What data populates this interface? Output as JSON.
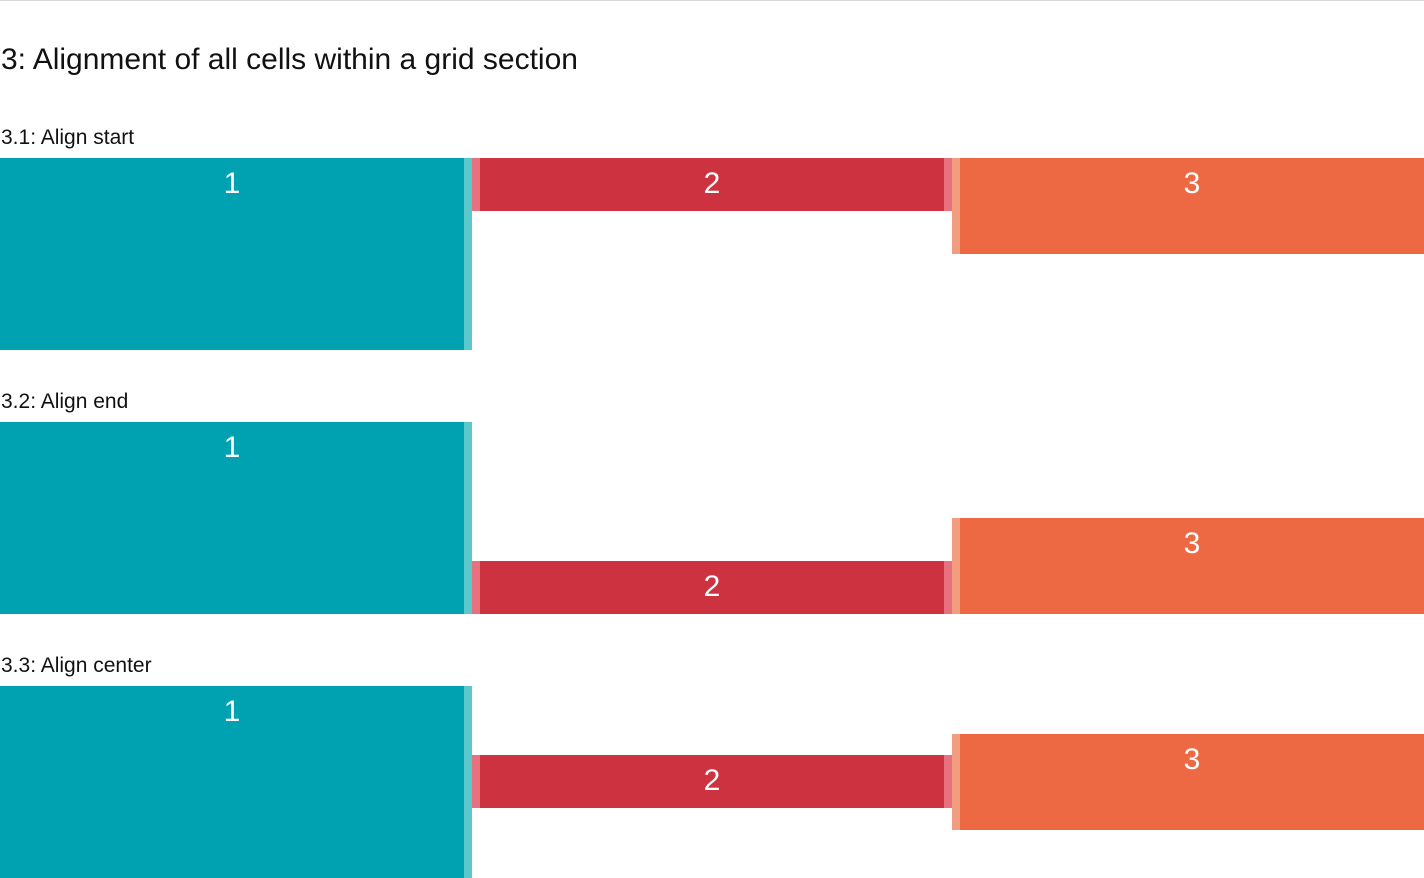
{
  "page": {
    "title": "3: Alignment of all cells within a grid section"
  },
  "colors": {
    "teal": "#00a2b1",
    "teal_edge": "#5bc8cc",
    "red": "#cd3241",
    "red_edge": "#e7717d",
    "orange": "#ec6943",
    "orange_edge": "#f29d7f"
  },
  "sections": [
    {
      "title": "3.1: Align start",
      "alignment": "start",
      "cells": [
        {
          "label": "1"
        },
        {
          "label": "2"
        },
        {
          "label": "3"
        }
      ]
    },
    {
      "title": "3.2: Align end",
      "alignment": "end",
      "cells": [
        {
          "label": "1"
        },
        {
          "label": "2"
        },
        {
          "label": "3"
        }
      ]
    },
    {
      "title": "3.3: Align center",
      "alignment": "center",
      "cells": [
        {
          "label": "1"
        },
        {
          "label": "2"
        },
        {
          "label": "3"
        }
      ]
    }
  ]
}
